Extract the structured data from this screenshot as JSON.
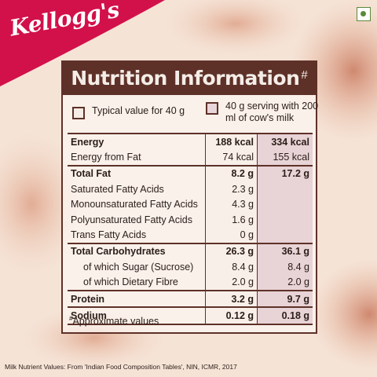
{
  "brand": {
    "logo_text": "Kellogg's",
    "accent_color": "#d2114b",
    "panel_color": "#5e3128"
  },
  "veg_mark": {
    "icon": "veg-symbol-icon",
    "color": "#5a8a3a"
  },
  "panel": {
    "title": "Nutrition Information",
    "title_mark": "#",
    "legend": [
      {
        "label": "Typical value for 40 g"
      },
      {
        "label": "40 g serving with 200 ml of cow's milk"
      }
    ],
    "rows": [
      {
        "name": "Energy",
        "v1": "188 kcal",
        "v2": "334 kcal"
      },
      {
        "name": "Energy from Fat",
        "v1": "74 kcal",
        "v2": "155 kcal"
      },
      {
        "name": "Total Fat",
        "v1": "8.2 g",
        "v2": "17.2 g"
      },
      {
        "name": "Saturated Fatty Acids",
        "v1": "2.3 g",
        "v2": ""
      },
      {
        "name": "Monounsaturated Fatty Acids",
        "v1": "4.3 g",
        "v2": ""
      },
      {
        "name": "Polyunsaturated Fatty Acids",
        "v1": "1.6 g",
        "v2": ""
      },
      {
        "name": "Trans Fatty Acids",
        "v1": "0 g",
        "v2": ""
      },
      {
        "name": "Total Carbohydrates",
        "v1": "26.3 g",
        "v2": "36.1 g"
      },
      {
        "name": "of which Sugar (Sucrose)",
        "v1": "8.4 g",
        "v2": "8.4 g"
      },
      {
        "name": "of which Dietary Fibre",
        "v1": "2.0 g",
        "v2": "2.0 g"
      },
      {
        "name": "Protein",
        "v1": "3.2 g",
        "v2": "9.7 g"
      },
      {
        "name": "Sodium",
        "v1": "0.12 g",
        "v2": "0.18 g"
      }
    ],
    "footnote_mark": "#",
    "footnote": "Approximate values"
  },
  "source_note": "Milk Nutrient Values: From 'Indian Food Composition Tables', NIN, ICMR, 2017"
}
